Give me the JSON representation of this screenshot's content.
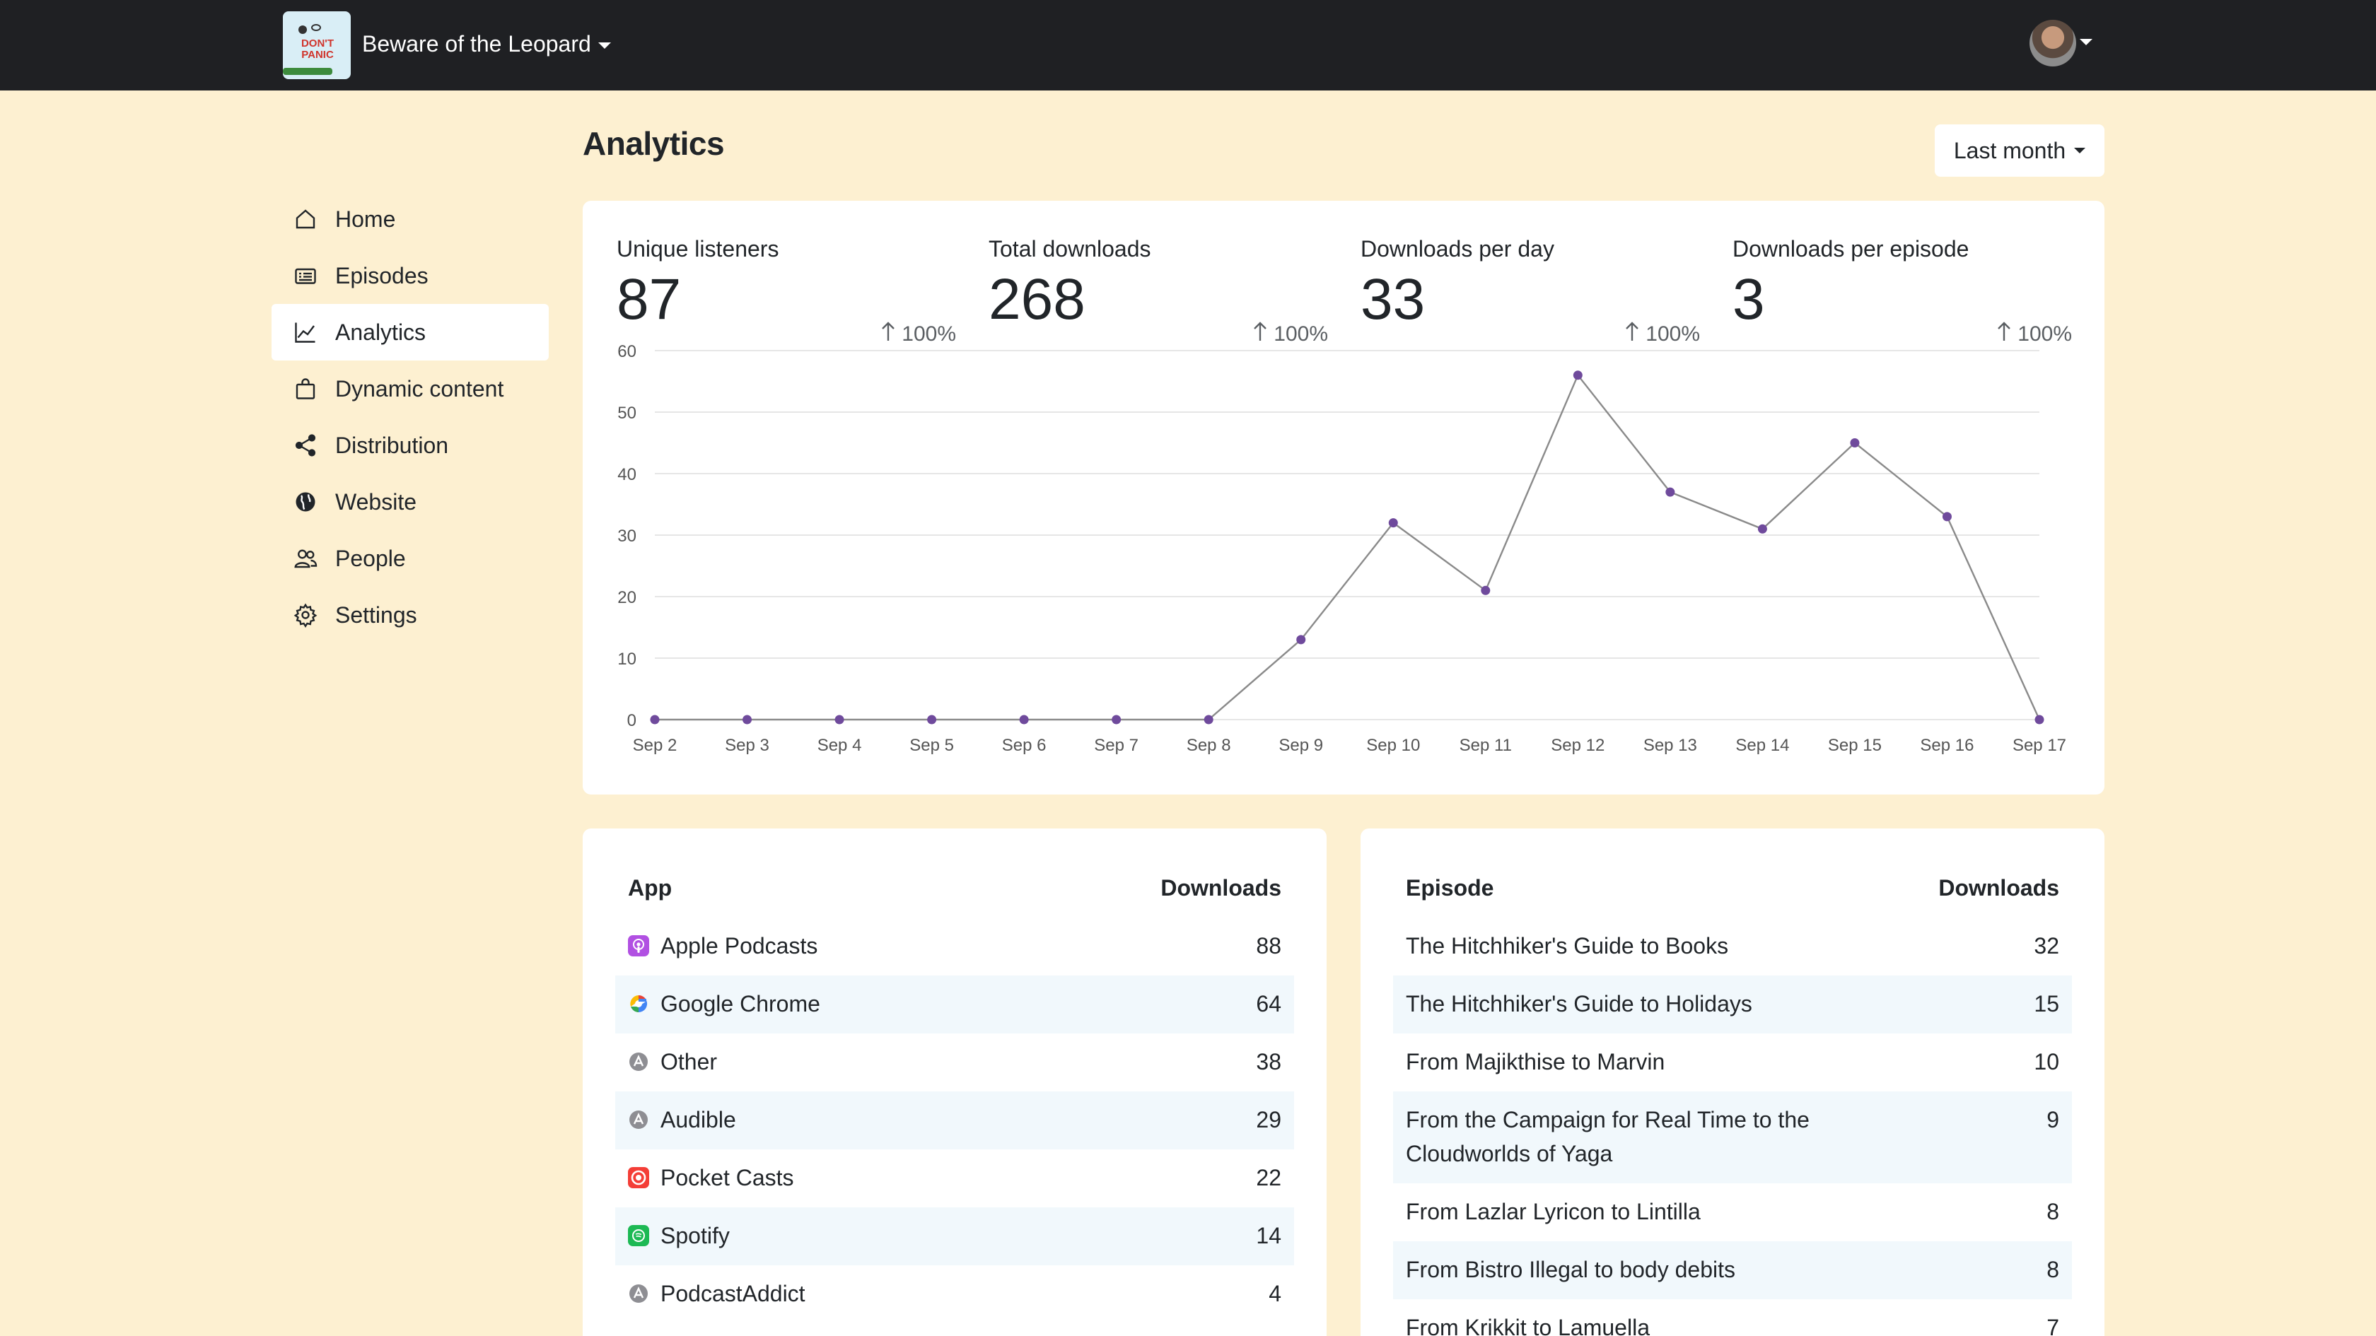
{
  "header": {
    "podcast_title": "Beware of the Leopard",
    "logo_text": "DON'T PANIC",
    "icons": {
      "podcast_switcher": "chevron-down-icon",
      "user_menu": "chevron-down-icon"
    }
  },
  "sidebar": {
    "items": [
      {
        "label": "Home",
        "icon": "home-icon",
        "active": false
      },
      {
        "label": "Episodes",
        "icon": "episodes-icon",
        "active": false
      },
      {
        "label": "Analytics",
        "icon": "chart-line-icon",
        "active": true
      },
      {
        "label": "Dynamic content",
        "icon": "bag-icon",
        "active": false
      },
      {
        "label": "Distribution",
        "icon": "share-icon",
        "active": false
      },
      {
        "label": "Website",
        "icon": "globe-icon",
        "active": false
      },
      {
        "label": "People",
        "icon": "people-icon",
        "active": false
      },
      {
        "label": "Settings",
        "icon": "gear-icon",
        "active": false
      }
    ]
  },
  "page": {
    "title": "Analytics",
    "date_range": "Last month"
  },
  "stats": [
    {
      "label": "Unique listeners",
      "value": "87",
      "change": "100%",
      "trend": "up"
    },
    {
      "label": "Total downloads",
      "value": "268",
      "change": "100%",
      "trend": "up"
    },
    {
      "label": "Downloads per day",
      "value": "33",
      "change": "100%",
      "trend": "up"
    },
    {
      "label": "Downloads per episode",
      "value": "3",
      "change": "100%",
      "trend": "up"
    }
  ],
  "chart_data": {
    "type": "line",
    "title": "",
    "xlabel": "",
    "ylabel": "",
    "x": [
      "Sep 2",
      "Sep 3",
      "Sep 4",
      "Sep 5",
      "Sep 6",
      "Sep 7",
      "Sep 8",
      "Sep 9",
      "Sep 10",
      "Sep 11",
      "Sep 12",
      "Sep 13",
      "Sep 14",
      "Sep 15",
      "Sep 16",
      "Sep 17"
    ],
    "series": [
      {
        "values": [
          0,
          0,
          0,
          0,
          0,
          0,
          0,
          13,
          32,
          21,
          56,
          37,
          31,
          45,
          33,
          0
        ]
      }
    ],
    "ylim": [
      0,
      60
    ],
    "yticks": [
      0,
      10,
      20,
      30,
      40,
      50,
      60
    ],
    "grid": true,
    "legend": "none",
    "colors": {
      "line": "#8a8a8a",
      "point": "#6f4a9c",
      "grid": "#e6e6e6"
    }
  },
  "apps_table": {
    "col_label": "App",
    "col_value": "Downloads",
    "rows": [
      {
        "label": "Apple Podcasts",
        "value": "88",
        "icon": "apple-podcasts-icon"
      },
      {
        "label": "Google Chrome",
        "value": "64",
        "icon": "google-chrome-icon"
      },
      {
        "label": "Other",
        "value": "38",
        "icon": "app-generic-icon"
      },
      {
        "label": "Audible",
        "value": "29",
        "icon": "app-generic-icon"
      },
      {
        "label": "Pocket Casts",
        "value": "22",
        "icon": "pocket-casts-icon"
      },
      {
        "label": "Spotify",
        "value": "14",
        "icon": "spotify-icon"
      },
      {
        "label": "PodcastAddict",
        "value": "4",
        "icon": "app-generic-icon"
      }
    ]
  },
  "episodes_table": {
    "col_label": "Episode",
    "col_value": "Downloads",
    "rows": [
      {
        "label": "The Hitchhiker's Guide to Books",
        "value": "32"
      },
      {
        "label": "The Hitchhiker's Guide to Holidays",
        "value": "15"
      },
      {
        "label": "From Majikthise to Marvin",
        "value": "10"
      },
      {
        "label": "From the Campaign for Real Time to the Cloudworlds of Yaga",
        "value": "9"
      },
      {
        "label": "From Lazlar Lyricon to Lintilla",
        "value": "8"
      },
      {
        "label": "From Bistro Illegal to body debits",
        "value": "8"
      },
      {
        "label": "From Krikkit to Lamuella",
        "value": "7"
      }
    ]
  },
  "colors": {
    "page_bg": "#fdf0d1",
    "topbar_bg": "#1f2023",
    "card_bg": "#ffffff",
    "row_stripe": "#f1f8fc",
    "accent_point": "#6f4a9c"
  }
}
